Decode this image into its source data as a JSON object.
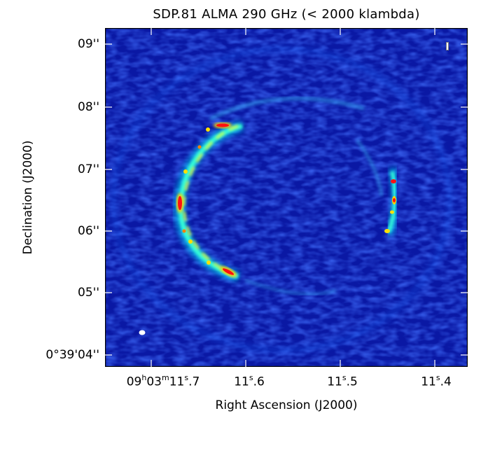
{
  "title": "SDP.81 ALMA 290 GHz (< 2000 klambda)",
  "axes": {
    "xlabel": "Right Ascension (J2000)",
    "ylabel": "Declination (J2000)",
    "yticks": [
      "09''",
      "08''",
      "07''",
      "06''",
      "05''",
      "0°39'04''"
    ],
    "xticks": [
      {
        "main": "09",
        "sup1": "h",
        "mid": "03",
        "sup2": "m",
        "tail": "11",
        "sup3": "s",
        "end": ".7"
      },
      {
        "main": "11",
        "sup": "s",
        "end": ".6"
      },
      {
        "main": "11",
        "sup": "s",
        "end": ".5"
      },
      {
        "main": "11",
        "sup": "s",
        "end": ".4"
      }
    ]
  },
  "colors": {
    "background": "#0a1aa8",
    "arc_high": "#ff0000",
    "arc_mid": "#00ffe6",
    "arc_low": "#1f6cff"
  }
}
